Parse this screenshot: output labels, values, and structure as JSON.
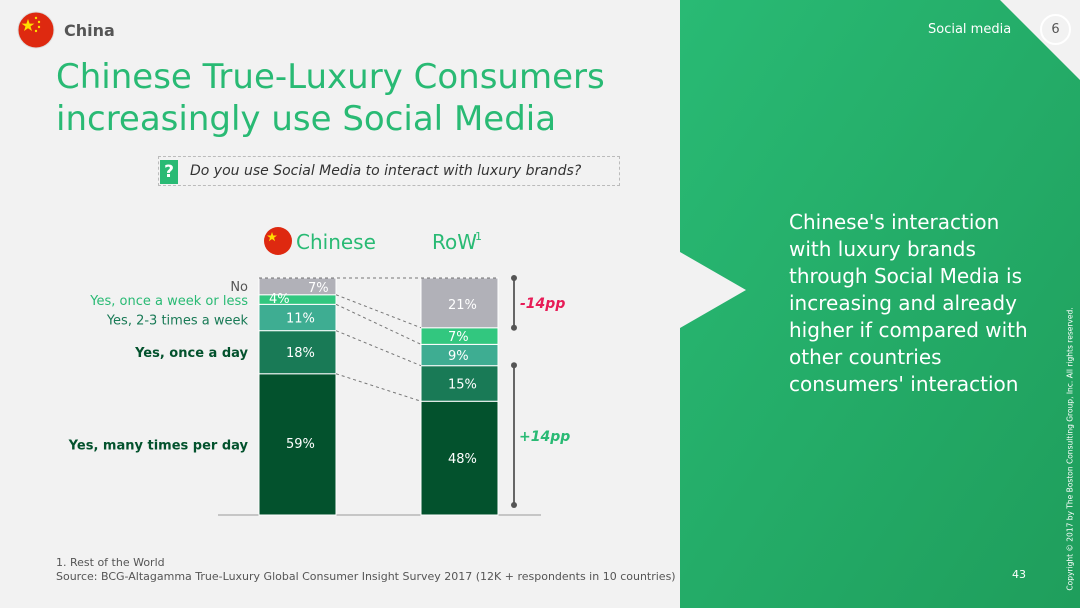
{
  "header": {
    "country": "China",
    "title_line1": "Chinese True-Luxury Consumers",
    "title_line2": "increasingly use Social Media"
  },
  "question": {
    "icon": "?",
    "text": "Do you use Social Media to interact with luxury brands?"
  },
  "side_panel": {
    "section_label": "Social media",
    "section_number": "6",
    "insight": "Chinese's interaction with luxury brands through Social Media is increasing and already higher if compared with other countries consumers' interaction",
    "copyright": "Copyright © 2017 by The Boston Consulting Group, Inc. All rights reserved.",
    "page_number": "43"
  },
  "footnotes": {
    "note1": "1. Rest of the World",
    "source": "Source: BCG-Altagamma True-Luxury Global Consumer Insight Survey 2017 (12K + respondents in 10 countries)"
  },
  "colors": {
    "brand_green": "#29ba74",
    "dark_green": "#03522d",
    "mid_green": "#197a56",
    "teal": "#3ead92",
    "light_green": "#32c77f",
    "gray": "#b1b1b8",
    "negative_red": "#e71c57"
  },
  "chart_data": {
    "type": "bar",
    "stacked": true,
    "categories": [
      "Chinese",
      "RoW"
    ],
    "category_superscripts": [
      "",
      "1"
    ],
    "series": [
      {
        "name": "Yes, many times per day",
        "values": [
          59,
          48
        ],
        "color": "#03522d"
      },
      {
        "name": "Yes, once a day",
        "values": [
          18,
          15
        ],
        "color": "#197a56"
      },
      {
        "name": "Yes, 2-3 times a week",
        "values": [
          11,
          9
        ],
        "color": "#3ead92"
      },
      {
        "name": "Yes, once a week or less",
        "values": [
          4,
          7
        ],
        "color": "#32c77f"
      },
      {
        "name": "No",
        "values": [
          7,
          21
        ],
        "color": "#b1b1b8"
      }
    ],
    "value_suffix": "%",
    "annotations": [
      {
        "text": "-14pp",
        "series": "No",
        "color": "#e71c57"
      },
      {
        "text": "+14pp",
        "series": "Yes, many times per day",
        "color": "#29ba74"
      }
    ]
  }
}
